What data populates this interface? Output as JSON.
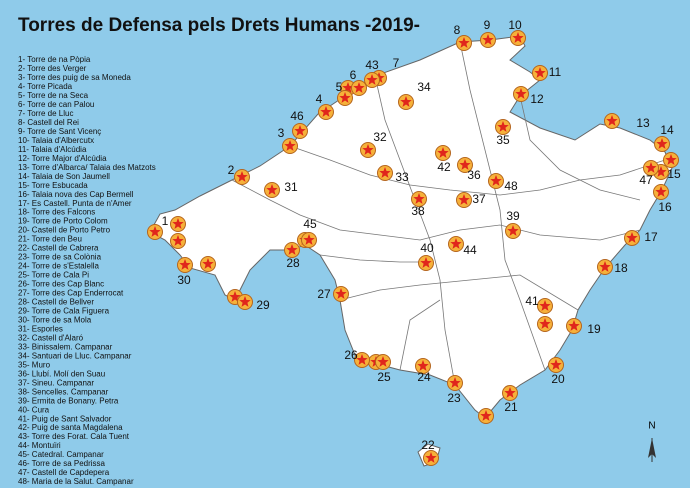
{
  "title": "Torres de Defensa pels Drets Humans -2019-",
  "legend": [
    "1- Torre de na Pòpia",
    "2- Torre des Verger",
    "3- Torre des puig de sa Moneda",
    "4- Torre Picada",
    "5- Torre de na Seca",
    "6- Torre de can Palou",
    "7- Torre de Lluc",
    "8- Castell del Rei",
    "9- Torre de Sant Vicenç",
    "10- Talaia d'Albercutx",
    "11- Talaia d'Alcúdia",
    "12- Torre Major d'Alcúdia",
    "13- Torre d'Albarca/ Talaia des Matzots",
    "14- Talaia de Son Jaumell",
    "15- Torre Esbucada",
    "16- Talaia nova des Cap Bermell",
    "17-  Es Castell. Punta de n'Amer",
    "18- Torre des Falcons",
    "19- Torre de Porto Colom",
    "20- Castell de Porto Petro",
    "21- Torre den Beu",
    "22- Castell de Cabrera",
    "23- Torre de sa Colònia",
    "24- Torre de s'Estalella",
    "25- Torre de Cala Pi",
    "26- Torre des Cap Blanc",
    "27- Torre des Cap Enderrocat",
    "28- Castell de Bellver",
    "29- Torre de Cala Figuera",
    "30- Torre de sa Mola",
    "31- Esporles",
    "32- Castell d'Alaró",
    "33- Binissalem. Campanar",
    "34- Santuari de Lluc. Campanar",
    "35- Muro",
    "36- Llubí. Molí den Suau",
    "37- Sineu. Campanar",
    "38- Sencelles. Campanar",
    "39- Ermita de Bonany. Petra",
    "40- Cura",
    "41- Puig de Sant Salvador",
    "42- Puig de santa Magdalena",
    "43- Torre des Forat. Cala Tuent",
    "44- Montuïri",
    "45- Catedral. Campanar",
    "46- Torre de sa Pedrissa",
    "47- Castell de Capdepera",
    "48- Maria de la Salut. Campanar"
  ],
  "markers": [
    "1",
    "2",
    "3",
    "4",
    "5",
    "6",
    "7",
    "8",
    "9",
    "10",
    "11",
    "12",
    "13",
    "14",
    "15",
    "16",
    "17",
    "18",
    "19",
    "20",
    "21",
    "22",
    "23",
    "24",
    "25",
    "26",
    "27",
    "28",
    "29",
    "30",
    "31",
    "32",
    "33",
    "34",
    "35",
    "36",
    "37",
    "38",
    "39",
    "40",
    "41",
    "42",
    "43",
    "44",
    "45",
    "46",
    "47",
    "48"
  ],
  "compass": "N"
}
